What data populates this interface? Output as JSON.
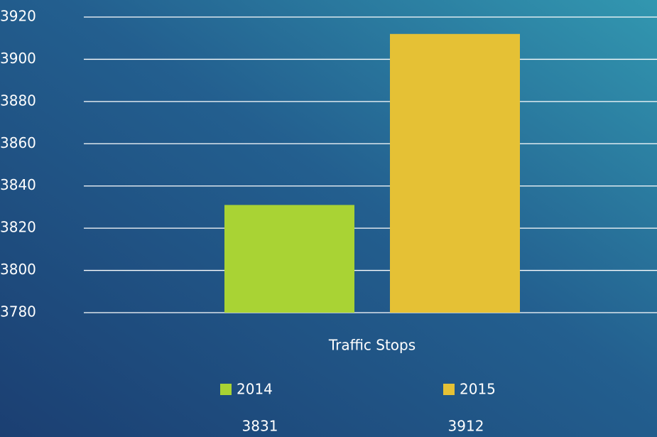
{
  "chart_data": {
    "type": "bar",
    "categories": [
      "Traffic Stops"
    ],
    "series": [
      {
        "name": "2014",
        "color": "#a9d334",
        "values": [
          3831
        ]
      },
      {
        "name": "2015",
        "color": "#e5c135",
        "values": [
          3912
        ]
      }
    ],
    "ylim": [
      3780,
      3920
    ],
    "yticks": [
      3780,
      3800,
      3820,
      3840,
      3860,
      3880,
      3900,
      3920
    ],
    "grid": true
  }
}
